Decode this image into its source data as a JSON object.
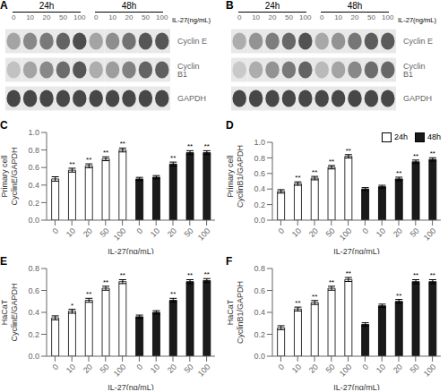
{
  "chart_data": [
    {
      "type": "heatmap",
      "title": "A",
      "group_labels": [
        "24h",
        "48h"
      ],
      "xlabel": "IL-27(ng/mL)",
      "categories": [
        "0",
        "10",
        "20",
        "50",
        "100",
        "0",
        "10",
        "20",
        "50",
        "100"
      ],
      "y_categories": [
        "Cyclin E",
        "Cyclin B1",
        "GAPDH"
      ],
      "cells": [
        [
          0.42,
          0.55,
          0.62,
          0.72,
          0.82,
          0.42,
          0.52,
          0.65,
          0.78,
          0.78
        ],
        [
          0.28,
          0.42,
          0.55,
          0.68,
          0.78,
          0.38,
          0.45,
          0.58,
          0.72,
          0.74
        ],
        [
          0.85,
          0.85,
          0.85,
          0.85,
          0.85,
          0.85,
          0.85,
          0.85,
          0.85,
          0.85
        ]
      ]
    },
    {
      "type": "heatmap",
      "title": "B",
      "group_labels": [
        "24h",
        "48h"
      ],
      "xlabel": "IL-27(ng/mL)",
      "categories": [
        "0",
        "10",
        "20",
        "50",
        "100",
        "0",
        "10",
        "20",
        "50",
        "100"
      ],
      "y_categories": [
        "Cyclin E",
        "Cyclin B1",
        "GAPDH"
      ],
      "cells": [
        [
          0.38,
          0.5,
          0.6,
          0.7,
          0.8,
          0.4,
          0.5,
          0.63,
          0.75,
          0.76
        ],
        [
          0.25,
          0.38,
          0.5,
          0.62,
          0.72,
          0.32,
          0.42,
          0.55,
          0.68,
          0.7
        ],
        [
          0.85,
          0.85,
          0.85,
          0.85,
          0.85,
          0.85,
          0.85,
          0.85,
          0.85,
          0.85
        ]
      ]
    },
    {
      "type": "bar",
      "title": "C",
      "xlabel": "IL-27(ng/mL)",
      "ylabel": "Primary cell\nCyclinE/GAPDH",
      "grid": false,
      "categories": [
        "0",
        "10",
        "20",
        "50",
        "100",
        "0",
        "10",
        "20",
        "50",
        "100"
      ],
      "ylim": [
        0,
        1.0
      ],
      "yticks": [
        {
          "value": 0,
          "label": "0.0"
        },
        0.2,
        0.4,
        0.6,
        0.8,
        {
          "value": 1,
          "label": "1.0"
        }
      ],
      "series": [
        {
          "name": "24h",
          "color": "#ffffff",
          "values": [
            0.47,
            0.57,
            0.62,
            0.7,
            0.8,
            null,
            null,
            null,
            null,
            null
          ],
          "errors": [
            0.025,
            0.022,
            0.022,
            0.022,
            0.022,
            null,
            null,
            null,
            null,
            null
          ],
          "significance": [
            null,
            "**",
            "**",
            "**",
            "**",
            null,
            null,
            null,
            null,
            null
          ]
        },
        {
          "name": "48h",
          "color": "#1a1a1a",
          "values": [
            null,
            null,
            null,
            null,
            null,
            0.47,
            0.49,
            0.64,
            0.77,
            0.77
          ],
          "errors": [
            null,
            null,
            null,
            null,
            null,
            0.018,
            0.018,
            0.022,
            0.022,
            0.022
          ],
          "significance": [
            null,
            null,
            null,
            null,
            null,
            null,
            null,
            "**",
            "**",
            "**"
          ]
        }
      ]
    },
    {
      "type": "bar",
      "title": "D",
      "xlabel": "IL-27(ng/mL)",
      "ylabel": "Primary cell\nCyclinB1/GAPDH",
      "grid": false,
      "legend": "upper right",
      "categories": [
        "0",
        "10",
        "20",
        "50",
        "100",
        "0",
        "10",
        "20",
        "50",
        "100"
      ],
      "ylim": [
        0,
        1.0
      ],
      "yticks": [
        {
          "value": 0,
          "label": "0.0"
        },
        0.2,
        0.4,
        0.6,
        0.8,
        {
          "value": 1,
          "label": "1.0"
        }
      ],
      "series": [
        {
          "name": "24h",
          "color": "#ffffff",
          "values": [
            0.37,
            0.47,
            0.54,
            0.68,
            0.82,
            null,
            null,
            null,
            null,
            null
          ],
          "errors": [
            0.022,
            0.022,
            0.022,
            0.022,
            0.022,
            null,
            null,
            null,
            null,
            null
          ],
          "significance": [
            null,
            "**",
            "**",
            "**",
            "**",
            null,
            null,
            null,
            null,
            null
          ]
        },
        {
          "name": "48h",
          "color": "#1a1a1a",
          "values": [
            null,
            null,
            null,
            null,
            null,
            0.4,
            0.43,
            0.53,
            0.75,
            0.78
          ],
          "errors": [
            null,
            null,
            null,
            null,
            null,
            0.018,
            0.018,
            0.022,
            0.022,
            0.022
          ],
          "significance": [
            null,
            null,
            null,
            null,
            null,
            null,
            null,
            "**",
            "**",
            "**"
          ]
        }
      ]
    },
    {
      "type": "bar",
      "title": "E",
      "xlabel": "IL-27(ng/mL)",
      "ylabel": "HaCaT\nCyclinE/GAPDH",
      "grid": false,
      "categories": [
        "0",
        "10",
        "20",
        "50",
        "100",
        "0",
        "10",
        "20",
        "50",
        "100"
      ],
      "ylim": [
        0,
        0.8
      ],
      "yticks": [
        {
          "value": 0,
          "label": "0.0"
        },
        0.2,
        0.4,
        0.6,
        0.8
      ],
      "series": [
        {
          "name": "24h",
          "color": "#ffffff",
          "values": [
            0.35,
            0.41,
            0.51,
            0.62,
            0.68,
            null,
            null,
            null,
            null,
            null
          ],
          "errors": [
            0.018,
            0.018,
            0.018,
            0.018,
            0.018,
            null,
            null,
            null,
            null,
            null
          ],
          "significance": [
            null,
            "*",
            "**",
            "**",
            "**",
            null,
            null,
            null,
            null,
            null
          ]
        },
        {
          "name": "48h",
          "color": "#1a1a1a",
          "values": [
            null,
            null,
            null,
            null,
            null,
            0.36,
            0.4,
            0.51,
            0.68,
            0.69
          ],
          "errors": [
            null,
            null,
            null,
            null,
            null,
            0.015,
            0.015,
            0.018,
            0.018,
            0.018
          ],
          "significance": [
            null,
            null,
            null,
            null,
            null,
            null,
            null,
            "**",
            "**",
            "**"
          ]
        }
      ]
    },
    {
      "type": "bar",
      "title": "F",
      "xlabel": "IL-27(ng/mL)",
      "ylabel": "HaCaT\nCyclinB1/GAPDH",
      "grid": false,
      "categories": [
        "0",
        "10",
        "20",
        "50",
        "100",
        "0",
        "10",
        "20",
        "50",
        "100"
      ],
      "ylim": [
        0,
        0.8
      ],
      "yticks": [
        {
          "value": 0,
          "label": "0.0"
        },
        0.2,
        0.4,
        0.6,
        0.8
      ],
      "series": [
        {
          "name": "24h",
          "color": "#ffffff",
          "values": [
            0.26,
            0.43,
            0.49,
            0.62,
            0.7,
            null,
            null,
            null,
            null,
            null
          ],
          "errors": [
            0.018,
            0.018,
            0.018,
            0.018,
            0.018,
            null,
            null,
            null,
            null,
            null
          ],
          "significance": [
            null,
            "**",
            "**",
            "**",
            "**",
            null,
            null,
            null,
            null,
            null
          ]
        },
        {
          "name": "48h",
          "color": "#1a1a1a",
          "values": [
            null,
            null,
            null,
            null,
            null,
            0.29,
            0.46,
            0.5,
            0.68,
            0.68
          ],
          "errors": [
            null,
            null,
            null,
            null,
            null,
            0.015,
            0.015,
            0.018,
            0.018,
            0.018
          ],
          "significance": [
            null,
            null,
            null,
            null,
            null,
            null,
            null,
            "**",
            "**",
            "**"
          ]
        }
      ]
    }
  ]
}
